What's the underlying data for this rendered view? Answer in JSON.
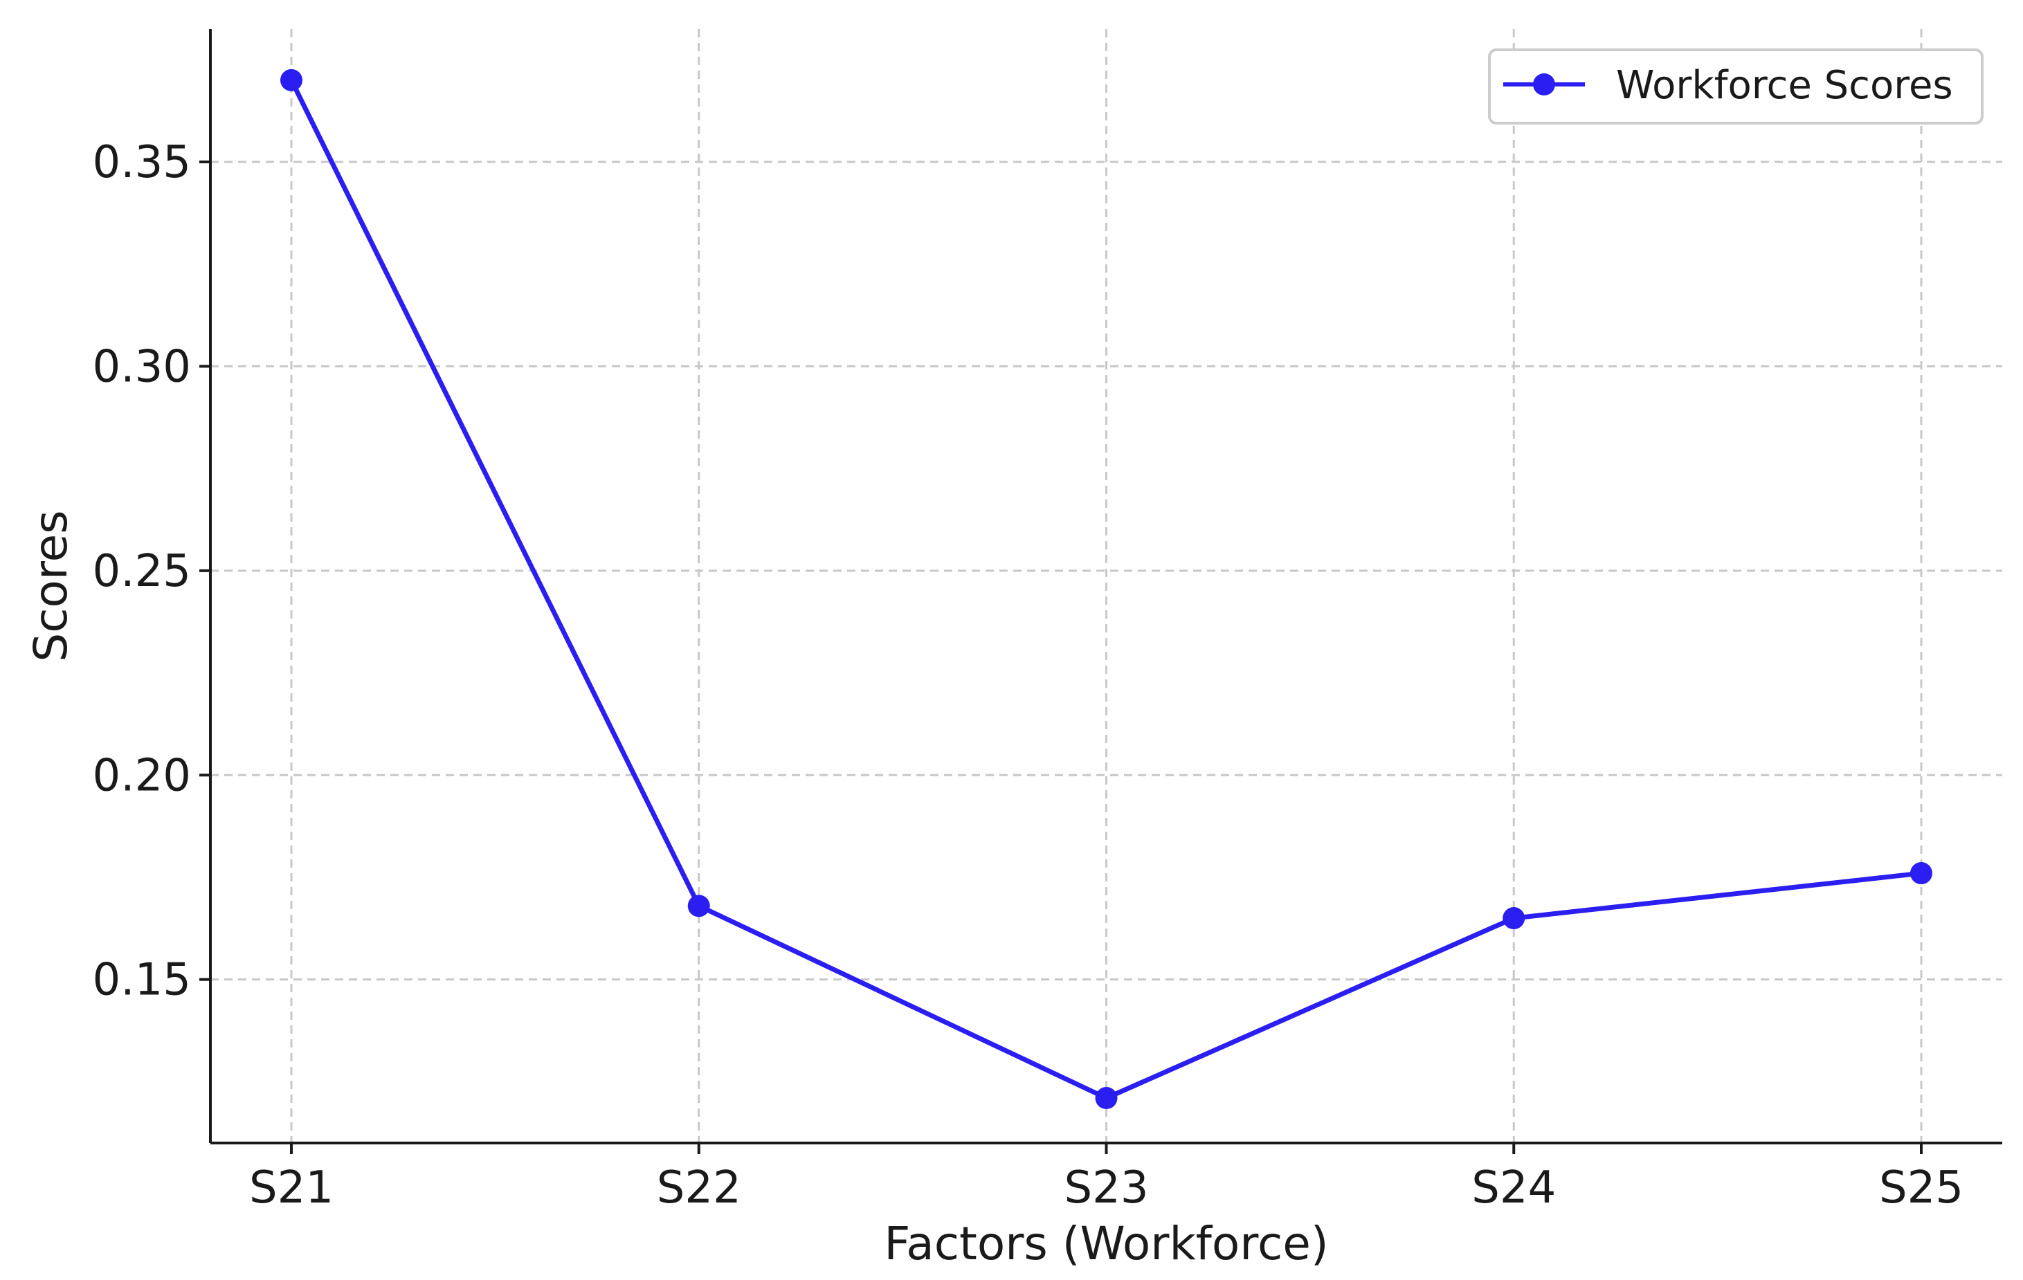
{
  "chart_data": {
    "type": "line",
    "title": "",
    "xlabel": "Factors (Workforce)",
    "ylabel": "Scores",
    "categories": [
      "S21",
      "S22",
      "S23",
      "S24",
      "S25"
    ],
    "series": [
      {
        "name": "Workforce Scores",
        "values": [
          0.37,
          0.168,
          0.121,
          0.165,
          0.176
        ],
        "color": "#2a1ef0"
      }
    ],
    "ylim": [
      0.11,
      0.3825
    ],
    "yticks": [
      0.15,
      0.2,
      0.25,
      0.3,
      0.35
    ],
    "ytick_labels": [
      "0.15",
      "0.20",
      "0.25",
      "0.30",
      "0.35"
    ],
    "grid": true,
    "legend_position": "top-right"
  }
}
